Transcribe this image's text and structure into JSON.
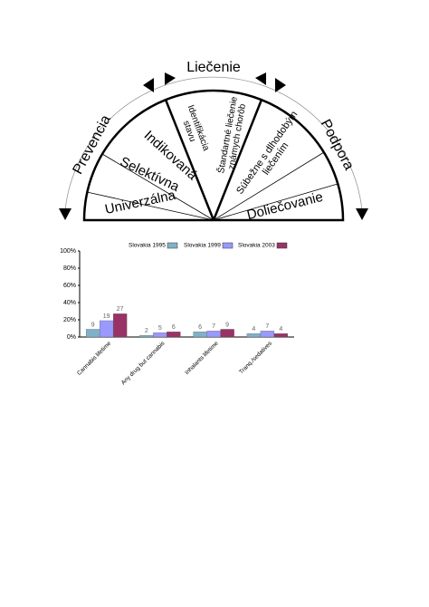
{
  "diagram": {
    "top_label": "Liečenie",
    "left_label": "Prevencia",
    "right_label": "Podpora",
    "sectors": [
      {
        "lines": [
          "Univerzálna"
        ]
      },
      {
        "lines": [
          "Selektívna"
        ]
      },
      {
        "lines": [
          "Indikovaná"
        ]
      },
      {
        "lines": [
          "Identifikácia",
          "stavu"
        ]
      },
      {
        "lines": [
          "Štandartné liečenie",
          "známych chorôb"
        ]
      },
      {
        "lines": [
          "Súbežne s dlhodobým",
          "liečením"
        ]
      },
      {
        "lines": [
          "Doliečovanie"
        ]
      }
    ]
  },
  "chart_data": {
    "type": "bar",
    "categories": [
      "Cannabis lifetime",
      "Any drug but cannabis",
      "Inhalants lifetime",
      "Tranq./sedatives"
    ],
    "series": [
      {
        "name": "Slovakia 1995",
        "color": "#7fb2c9",
        "values": [
          9,
          2,
          6,
          4
        ]
      },
      {
        "name": "Slovakia 1999",
        "color": "#9999ff",
        "values": [
          19,
          5,
          7,
          7
        ]
      },
      {
        "name": "Slovakia 2003",
        "color": "#993366",
        "values": [
          27,
          6,
          9,
          4
        ]
      }
    ],
    "ylim": [
      0,
      100
    ],
    "yticks": [
      {
        "value": 0,
        "label": "0%"
      },
      {
        "value": 20,
        "label": "20%"
      },
      {
        "value": 40,
        "label": "40%"
      },
      {
        "value": 60,
        "label": "60%"
      },
      {
        "value": 80,
        "label": "80%"
      },
      {
        "value": 100,
        "label": "100%"
      }
    ],
    "legend": "top",
    "grid": false
  }
}
